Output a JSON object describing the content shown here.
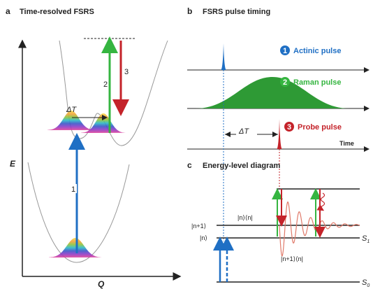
{
  "panel_a": {
    "label": "a",
    "title": "Time-resolved FSRS",
    "y_axis": "E",
    "x_axis": "Q",
    "arrows": [
      "1",
      "2",
      "3"
    ],
    "delta_t": "ΔT"
  },
  "panel_b": {
    "label": "b",
    "title": "FSRS pulse timing",
    "pulses": [
      {
        "number": "1",
        "name": "Actinic pulse"
      },
      {
        "number": "2",
        "name": "Raman pulse"
      },
      {
        "number": "3",
        "name": "Probe pulse"
      }
    ],
    "delta_t": "ΔT",
    "time_axis": "Time"
  },
  "panel_c": {
    "label": "c",
    "title": "Energy-level diagram",
    "levels": {
      "upper": "|n+1⟩",
      "lower": "|n⟩"
    },
    "coherences": [
      "|n⟩⟨n|",
      "|n+1⟩⟨n|"
    ],
    "states": [
      {
        "symbol": "S",
        "subscript": "1"
      },
      {
        "symbol": "S",
        "subscript": "0"
      }
    ]
  }
}
